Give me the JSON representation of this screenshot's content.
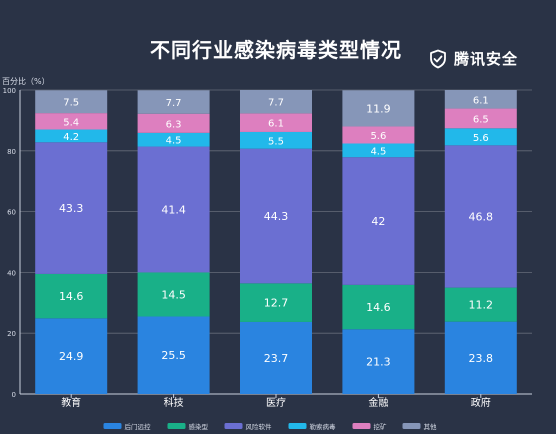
{
  "title": "不同行业感染病毒类型情况",
  "brand": {
    "name": "腾讯安全",
    "icon": "shield-check-icon"
  },
  "yaxis_title": "百分比（%）",
  "chart_data": {
    "type": "bar",
    "stacked": true,
    "categories": [
      "教育",
      "科技",
      "医疗",
      "金融",
      "政府"
    ],
    "ylim": [
      0,
      100
    ],
    "yticks": [
      0,
      20,
      40,
      60,
      80,
      100
    ],
    "ylabel": "百分比（%）",
    "grid": true,
    "legend_position": "bottom",
    "series": [
      {
        "name": "后门远控",
        "color": "#2a84e0",
        "values": [
          24.9,
          25.5,
          23.7,
          21.3,
          23.8
        ]
      },
      {
        "name": "感染型",
        "color": "#19b088",
        "values": [
          14.6,
          14.5,
          12.7,
          14.6,
          11.2
        ]
      },
      {
        "name": "风险软件",
        "color": "#6b6fd2",
        "values": [
          43.3,
          41.4,
          44.3,
          42,
          46.8
        ]
      },
      {
        "name": "勒索病毒",
        "color": "#22b8ea",
        "values": [
          4.2,
          4.5,
          5.5,
          4.5,
          5.6
        ]
      },
      {
        "name": "挖矿",
        "color": "#dd7fbf",
        "values": [
          5.4,
          6.3,
          6.1,
          5.6,
          6.5
        ]
      },
      {
        "name": "其他",
        "color": "#8696b8",
        "values": [
          7.5,
          7.7,
          7.7,
          11.9,
          6.1
        ]
      }
    ]
  }
}
